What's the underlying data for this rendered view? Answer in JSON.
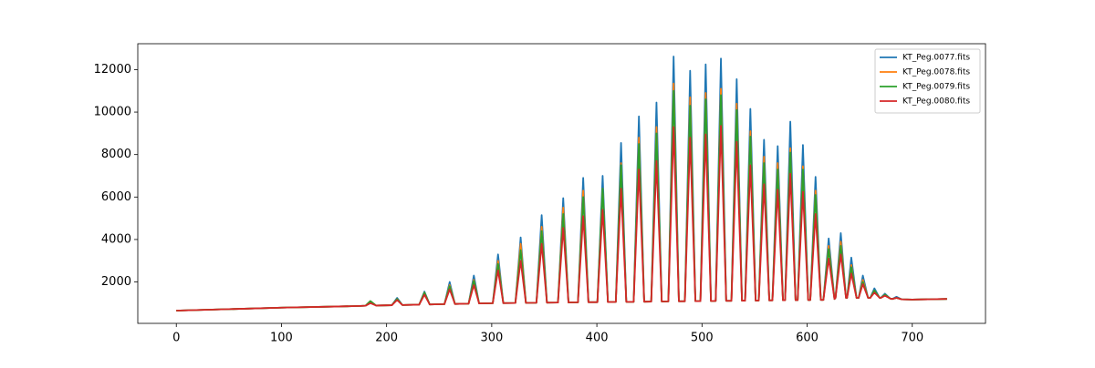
{
  "chart_data": {
    "type": "line",
    "x": [
      0,
      50,
      100,
      150,
      175,
      180,
      184.6,
      190,
      205,
      210,
      215,
      231,
      236,
      241,
      255,
      260,
      265,
      278,
      283,
      288,
      301,
      306,
      311,
      322.5,
      327.5,
      332.5,
      342.5,
      347.5,
      352.5,
      363,
      368,
      373,
      382,
      387,
      392,
      400.5,
      405.5,
      410.5,
      418,
      423,
      428,
      435,
      440,
      445,
      451.7,
      456.7,
      461.7,
      468,
      473,
      478,
      483.7,
      488.7,
      493.7,
      498.5,
      503.5,
      508.5,
      513,
      518,
      523,
      528,
      533,
      538,
      541,
      546,
      551,
      554,
      559,
      564,
      567,
      572,
      577,
      579,
      584,
      589,
      591,
      596,
      601,
      603,
      608,
      613,
      615.5,
      620.5,
      626,
      627,
      632,
      637,
      638,
      642,
      647,
      649,
      653,
      658,
      660,
      664,
      669,
      670,
      674,
      679,
      681,
      685,
      690,
      700,
      733
    ],
    "series": [
      {
        "name": "KT_Peg.0077.fits",
        "color": "#1f77b4",
        "values": [
          650,
          720,
          790,
          840,
          870,
          880,
          1100,
          890,
          905,
          1250,
          915,
          931,
          1550,
          941,
          955,
          2000,
          965,
          978,
          2300,
          988,
          1000,
          3300,
          1005,
          1011,
          4100,
          1016,
          1021,
          5150,
          1026,
          1031,
          5950,
          1036,
          1041,
          6900,
          1046,
          1050,
          7000,
          1055,
          1059,
          8550,
          1064,
          1067,
          9800,
          1072,
          1076,
          10450,
          1081,
          1084,
          12620,
          1089,
          1092,
          11950,
          1097,
          1099,
          12250,
          1104,
          1106,
          12520,
          1111,
          1114,
          11550,
          1119,
          1120,
          10150,
          1125,
          1127,
          8700,
          1132,
          1133,
          8400,
          1138,
          1139,
          9550,
          1144,
          1145,
          8450,
          1150,
          1151,
          6950,
          1156,
          1158,
          4050,
          1200,
          1250,
          4300,
          1250,
          1250,
          3150,
          1250,
          1250,
          2300,
          1250,
          1250,
          1700,
          1250,
          1250,
          1450,
          1220,
          1200,
          1300,
          1180,
          1170,
          1200
        ]
      },
      {
        "name": "KT_Peg.0078.fits",
        "color": "#ff7f0e",
        "values": [
          650,
          720,
          790,
          840,
          870,
          880,
          1100,
          890,
          905,
          1200,
          915,
          931,
          1500,
          941,
          955,
          1850,
          965,
          978,
          2100,
          988,
          1000,
          3000,
          1005,
          1011,
          3800,
          1016,
          1021,
          4600,
          1026,
          1031,
          5500,
          1036,
          1041,
          6300,
          1046,
          1050,
          6400,
          1055,
          1059,
          7600,
          1064,
          1067,
          8800,
          1072,
          1076,
          9300,
          1081,
          1084,
          11350,
          1089,
          1092,
          10700,
          1097,
          1099,
          10900,
          1104,
          1106,
          11100,
          1111,
          1114,
          10400,
          1119,
          1120,
          9100,
          1125,
          1127,
          7900,
          1132,
          1133,
          7600,
          1138,
          1139,
          8300,
          1144,
          1145,
          7450,
          1150,
          1151,
          6300,
          1156,
          1158,
          3700,
          1200,
          1250,
          3900,
          1250,
          1250,
          2800,
          1250,
          1250,
          2100,
          1250,
          1250,
          1600,
          1250,
          1250,
          1400,
          1220,
          1200,
          1250,
          1180,
          1170,
          1200
        ]
      },
      {
        "name": "KT_Peg.0079.fits",
        "color": "#2ca02c",
        "values": [
          650,
          720,
          790,
          840,
          870,
          880,
          1100,
          890,
          905,
          1200,
          915,
          931,
          1500,
          941,
          955,
          1800,
          965,
          978,
          2050,
          988,
          1000,
          2850,
          1005,
          1011,
          3500,
          1016,
          1021,
          4400,
          1026,
          1031,
          5200,
          1036,
          1041,
          6000,
          1046,
          1050,
          6400,
          1055,
          1059,
          7500,
          1064,
          1067,
          8500,
          1072,
          1076,
          9000,
          1081,
          1084,
          11000,
          1089,
          1092,
          10300,
          1097,
          1099,
          10600,
          1104,
          1106,
          10800,
          1111,
          1114,
          10100,
          1119,
          1120,
          8850,
          1125,
          1127,
          7600,
          1132,
          1133,
          7300,
          1138,
          1139,
          8100,
          1144,
          1145,
          7300,
          1150,
          1151,
          6100,
          1156,
          1158,
          3550,
          1200,
          1250,
          3700,
          1250,
          1250,
          2700,
          1250,
          1250,
          2000,
          1250,
          1250,
          1600,
          1250,
          1250,
          1400,
          1220,
          1200,
          1250,
          1180,
          1170,
          1200
        ]
      },
      {
        "name": "KT_Peg.0080.fits",
        "color": "#d62728",
        "values": [
          650,
          720,
          790,
          840,
          870,
          880,
          1000,
          890,
          905,
          1150,
          915,
          931,
          1400,
          941,
          955,
          1650,
          965,
          978,
          1850,
          988,
          1000,
          2550,
          1005,
          1011,
          3000,
          1016,
          1021,
          3800,
          1026,
          1031,
          4550,
          1036,
          1041,
          5100,
          1046,
          1050,
          5400,
          1055,
          1059,
          6400,
          1064,
          1067,
          7300,
          1072,
          1076,
          7700,
          1081,
          1084,
          9300,
          1089,
          1092,
          8800,
          1097,
          1099,
          8950,
          1104,
          1106,
          9350,
          1111,
          1114,
          8600,
          1119,
          1120,
          7500,
          1125,
          1127,
          6600,
          1132,
          1133,
          6350,
          1138,
          1139,
          7100,
          1144,
          1145,
          6250,
          1150,
          1151,
          5200,
          1156,
          1158,
          3100,
          1200,
          1250,
          3300,
          1250,
          1250,
          2400,
          1250,
          1250,
          1900,
          1250,
          1250,
          1500,
          1250,
          1250,
          1350,
          1220,
          1200,
          1250,
          1180,
          1170,
          1200
        ]
      }
    ],
    "xlim": [
      -36.65,
      769.65
    ],
    "ylim": [
      50,
      13220
    ],
    "xticks": [
      0,
      100,
      200,
      300,
      400,
      500,
      600,
      700
    ],
    "yticks": [
      2000,
      4000,
      6000,
      8000,
      10000,
      12000
    ],
    "legend": "upper right"
  }
}
